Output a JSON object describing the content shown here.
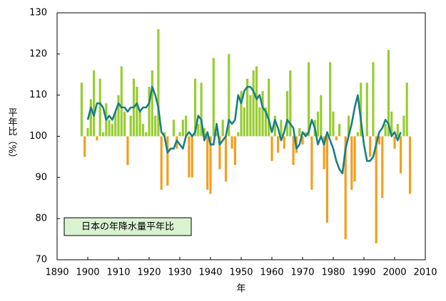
{
  "chart_data": {
    "type": "bar_line",
    "x_label": "年",
    "y_label": "平年比（%）",
    "legend_text": "日本の年降水量平年比",
    "x": [
      1898,
      1899,
      1900,
      1901,
      1902,
      1903,
      1904,
      1905,
      1906,
      1907,
      1908,
      1909,
      1910,
      1911,
      1912,
      1913,
      1914,
      1915,
      1916,
      1917,
      1918,
      1919,
      1920,
      1921,
      1922,
      1923,
      1924,
      1925,
      1926,
      1927,
      1928,
      1929,
      1930,
      1931,
      1932,
      1933,
      1934,
      1935,
      1936,
      1937,
      1938,
      1939,
      1940,
      1941,
      1942,
      1943,
      1944,
      1945,
      1946,
      1947,
      1948,
      1949,
      1950,
      1951,
      1952,
      1953,
      1954,
      1955,
      1956,
      1957,
      1958,
      1959,
      1960,
      1961,
      1962,
      1963,
      1964,
      1965,
      1966,
      1967,
      1968,
      1969,
      1970,
      1971,
      1972,
      1973,
      1974,
      1975,
      1976,
      1977,
      1978,
      1979,
      1980,
      1981,
      1982,
      1983,
      1984,
      1985,
      1986,
      1987,
      1988,
      1989,
      1990,
      1991,
      1992,
      1993,
      1994,
      1995,
      1996,
      1997,
      1998,
      1999,
      2000,
      2001,
      2002,
      2003,
      2004,
      2005
    ],
    "baseline": 100,
    "series": [
      {
        "kind": "bar",
        "color_above": "#99cc33",
        "color_below": "#f0a020",
        "values": [
          113,
          95,
          102,
          109,
          116,
          99,
          114,
          101,
          108,
          104,
          103,
          106,
          110,
          117,
          106,
          93,
          105,
          114,
          112,
          106,
          103,
          101,
          112,
          116,
          105,
          126,
          87,
          101,
          88,
          100,
          104,
          97,
          101,
          104,
          105,
          90,
          90,
          114,
          103,
          113,
          102,
          87,
          86,
          119,
          101,
          92,
          104,
          89,
          120,
          97,
          93,
          101,
          111,
          107,
          114,
          110,
          116,
          117,
          107,
          111,
          107,
          114,
          94,
          105,
          96,
          104,
          97,
          111,
          116,
          93,
          96,
          102,
          98,
          101,
          118,
          87,
          104,
          106,
          110,
          92,
          79,
          118,
          106,
          99,
          103,
          100,
          75,
          105,
          87,
          89,
          101,
          113,
          100,
          113,
          95,
          118,
          74,
          98,
          85,
          103,
          121,
          106,
          97,
          103,
          91,
          105,
          113,
          86
        ]
      },
      {
        "kind": "line",
        "color": "#1a8080",
        "values": [
          null,
          null,
          104,
          107,
          105,
          108,
          108,
          107,
          104,
          105,
          104,
          106,
          108,
          107,
          107,
          106,
          107,
          107,
          108,
          106,
          107,
          107,
          108,
          112,
          110,
          107,
          101,
          100,
          96,
          97,
          97,
          99,
          98,
          97,
          100,
          101,
          100,
          101,
          105,
          104,
          99,
          101,
          98,
          98,
          103,
          98,
          99,
          100,
          104,
          103,
          104,
          110,
          108,
          111,
          112,
          112,
          111,
          109,
          110,
          107,
          106,
          104,
          101,
          104,
          102,
          99,
          101,
          104,
          103,
          102,
          97,
          98,
          101,
          100,
          101,
          104,
          102,
          98,
          100,
          98,
          101,
          99,
          97,
          94,
          92,
          91,
          97,
          100,
          103,
          107,
          110,
          104,
          98,
          94,
          94,
          95,
          98,
          101,
          102,
          104,
          103,
          100,
          101,
          99,
          101,
          null,
          null,
          null
        ]
      }
    ],
    "xlim": [
      1890,
      2010
    ],
    "xticks": [
      1890,
      1900,
      1910,
      1920,
      1930,
      1940,
      1950,
      1960,
      1970,
      1980,
      1990,
      2000,
      2010
    ],
    "ylim": [
      70,
      130
    ],
    "yticks": [
      70,
      80,
      90,
      100,
      110,
      120,
      130
    ]
  }
}
